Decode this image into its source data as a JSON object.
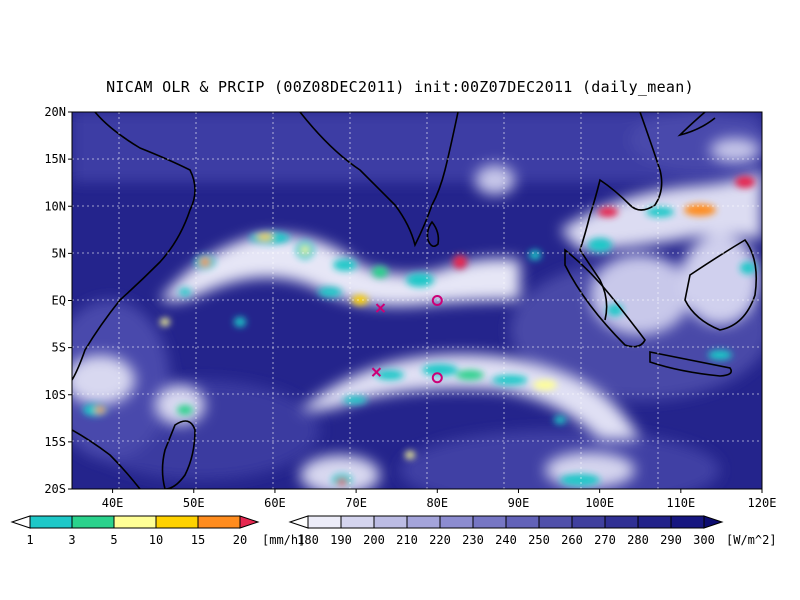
{
  "title": "NICAM OLR & PRCIP (00Z08DEC2011) init:00Z07DEC2011 (daily_mean)",
  "map": {
    "lat_ticks": [
      "20N",
      "15N",
      "10N",
      "5N",
      "EQ",
      "5S",
      "10S",
      "15S",
      "20S"
    ],
    "lon_ticks": [
      "40E",
      "50E",
      "60E",
      "70E",
      "80E",
      "90E",
      "100E",
      "110E",
      "120E"
    ],
    "markers": [
      {
        "type": "cross",
        "lon": 73,
        "lat": -0.8,
        "color": "#cc0077"
      },
      {
        "type": "circle",
        "lon": 80,
        "lat": 0,
        "color": "#cc0077"
      },
      {
        "type": "cross",
        "lon": 72.5,
        "lat": -7.6,
        "color": "#cc0077"
      },
      {
        "type": "circle",
        "lon": 80,
        "lat": -8.2,
        "color": "#cc0077"
      }
    ]
  },
  "precip_colorbar": {
    "labels": [
      "1",
      "3",
      "5",
      "10",
      "15",
      "20"
    ],
    "unit": "[mm/h]",
    "colors": [
      "#ffffff",
      "#1ec8c8",
      "#2ad28c",
      "#ffff96",
      "#ffd200",
      "#ff8c1e",
      "#e62850"
    ]
  },
  "olr_colorbar": {
    "labels": [
      "180",
      "190",
      "200",
      "210",
      "220",
      "230",
      "240",
      "250",
      "260",
      "270",
      "280",
      "290",
      "300"
    ],
    "unit": "[W/m^2]",
    "colors": [
      "#ffffff",
      "#ececf8",
      "#d4d4ee",
      "#bcbce4",
      "#a4a4da",
      "#8c8cd0",
      "#7676c4",
      "#6262b8",
      "#5050aa",
      "#40409e",
      "#303094",
      "#22228a",
      "#161680",
      "#0c0c70"
    ]
  }
}
